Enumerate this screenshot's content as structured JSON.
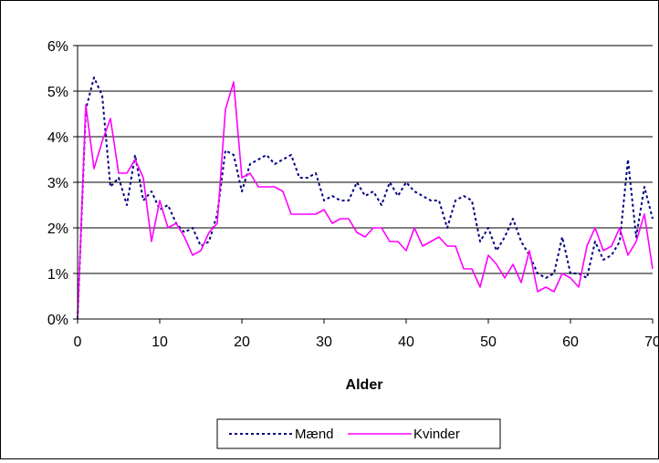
{
  "chart_data": {
    "type": "line",
    "title": "",
    "xlabel": "Alder",
    "ylabel": "",
    "xlim": [
      0,
      70
    ],
    "ylim": [
      0,
      6
    ],
    "x_ticks": [
      0,
      10,
      20,
      30,
      40,
      50,
      60,
      70
    ],
    "y_ticks": [
      0,
      1,
      2,
      3,
      4,
      5,
      6
    ],
    "y_tick_labels": [
      "0%",
      "1%",
      "2%",
      "3%",
      "4%",
      "5%",
      "6%"
    ],
    "x_tick_labels": [
      "0",
      "10",
      "20",
      "30",
      "40",
      "50",
      "60",
      "70"
    ],
    "grid": "horizontal",
    "legend_position": "bottom",
    "x": [
      0,
      1,
      2,
      3,
      4,
      5,
      6,
      7,
      8,
      9,
      10,
      11,
      12,
      13,
      14,
      15,
      16,
      17,
      18,
      19,
      20,
      21,
      22,
      23,
      24,
      25,
      26,
      27,
      28,
      29,
      30,
      31,
      32,
      33,
      34,
      35,
      36,
      37,
      38,
      39,
      40,
      41,
      42,
      43,
      44,
      45,
      46,
      47,
      48,
      49,
      50,
      51,
      52,
      53,
      54,
      55,
      56,
      57,
      58,
      59,
      60,
      61,
      62,
      63,
      64,
      65,
      66,
      67,
      68,
      69,
      70
    ],
    "series": [
      {
        "name": "Mænd",
        "color": "#000080",
        "style": "dotted",
        "values": [
          0.0,
          4.6,
          5.3,
          4.9,
          2.9,
          3.1,
          2.5,
          3.6,
          2.6,
          2.8,
          2.4,
          2.5,
          2.1,
          1.9,
          2.0,
          1.6,
          1.7,
          2.3,
          3.7,
          3.6,
          2.8,
          3.4,
          3.5,
          3.6,
          3.4,
          3.5,
          3.6,
          3.1,
          3.1,
          3.2,
          2.6,
          2.7,
          2.6,
          2.6,
          3.0,
          2.7,
          2.8,
          2.5,
          3.0,
          2.7,
          3.0,
          2.8,
          2.7,
          2.6,
          2.6,
          2.0,
          2.6,
          2.7,
          2.6,
          1.7,
          2.0,
          1.5,
          1.8,
          2.2,
          1.7,
          1.4,
          1.0,
          0.9,
          1.0,
          1.8,
          1.0,
          1.0,
          0.9,
          1.7,
          1.3,
          1.4,
          1.7,
          3.5,
          1.8,
          2.9,
          2.2
        ]
      },
      {
        "name": "Kvinder",
        "color": "#FF00FF",
        "style": "solid",
        "values": [
          0.0,
          4.7,
          3.3,
          3.9,
          4.4,
          3.2,
          3.2,
          3.5,
          3.1,
          1.7,
          2.6,
          2.0,
          2.1,
          1.8,
          1.4,
          1.5,
          1.9,
          2.1,
          4.6,
          5.2,
          3.1,
          3.2,
          2.9,
          2.9,
          2.9,
          2.8,
          2.3,
          2.3,
          2.3,
          2.3,
          2.4,
          2.1,
          2.2,
          2.2,
          1.9,
          1.8,
          2.0,
          2.0,
          1.7,
          1.7,
          1.5,
          2.0,
          1.6,
          1.7,
          1.8,
          1.6,
          1.6,
          1.1,
          1.1,
          0.7,
          1.4,
          1.2,
          0.9,
          1.2,
          0.8,
          1.5,
          0.6,
          0.7,
          0.6,
          1.0,
          0.9,
          0.7,
          1.6,
          2.0,
          1.5,
          1.6,
          2.0,
          1.4,
          1.7,
          2.3,
          1.1
        ]
      }
    ]
  }
}
